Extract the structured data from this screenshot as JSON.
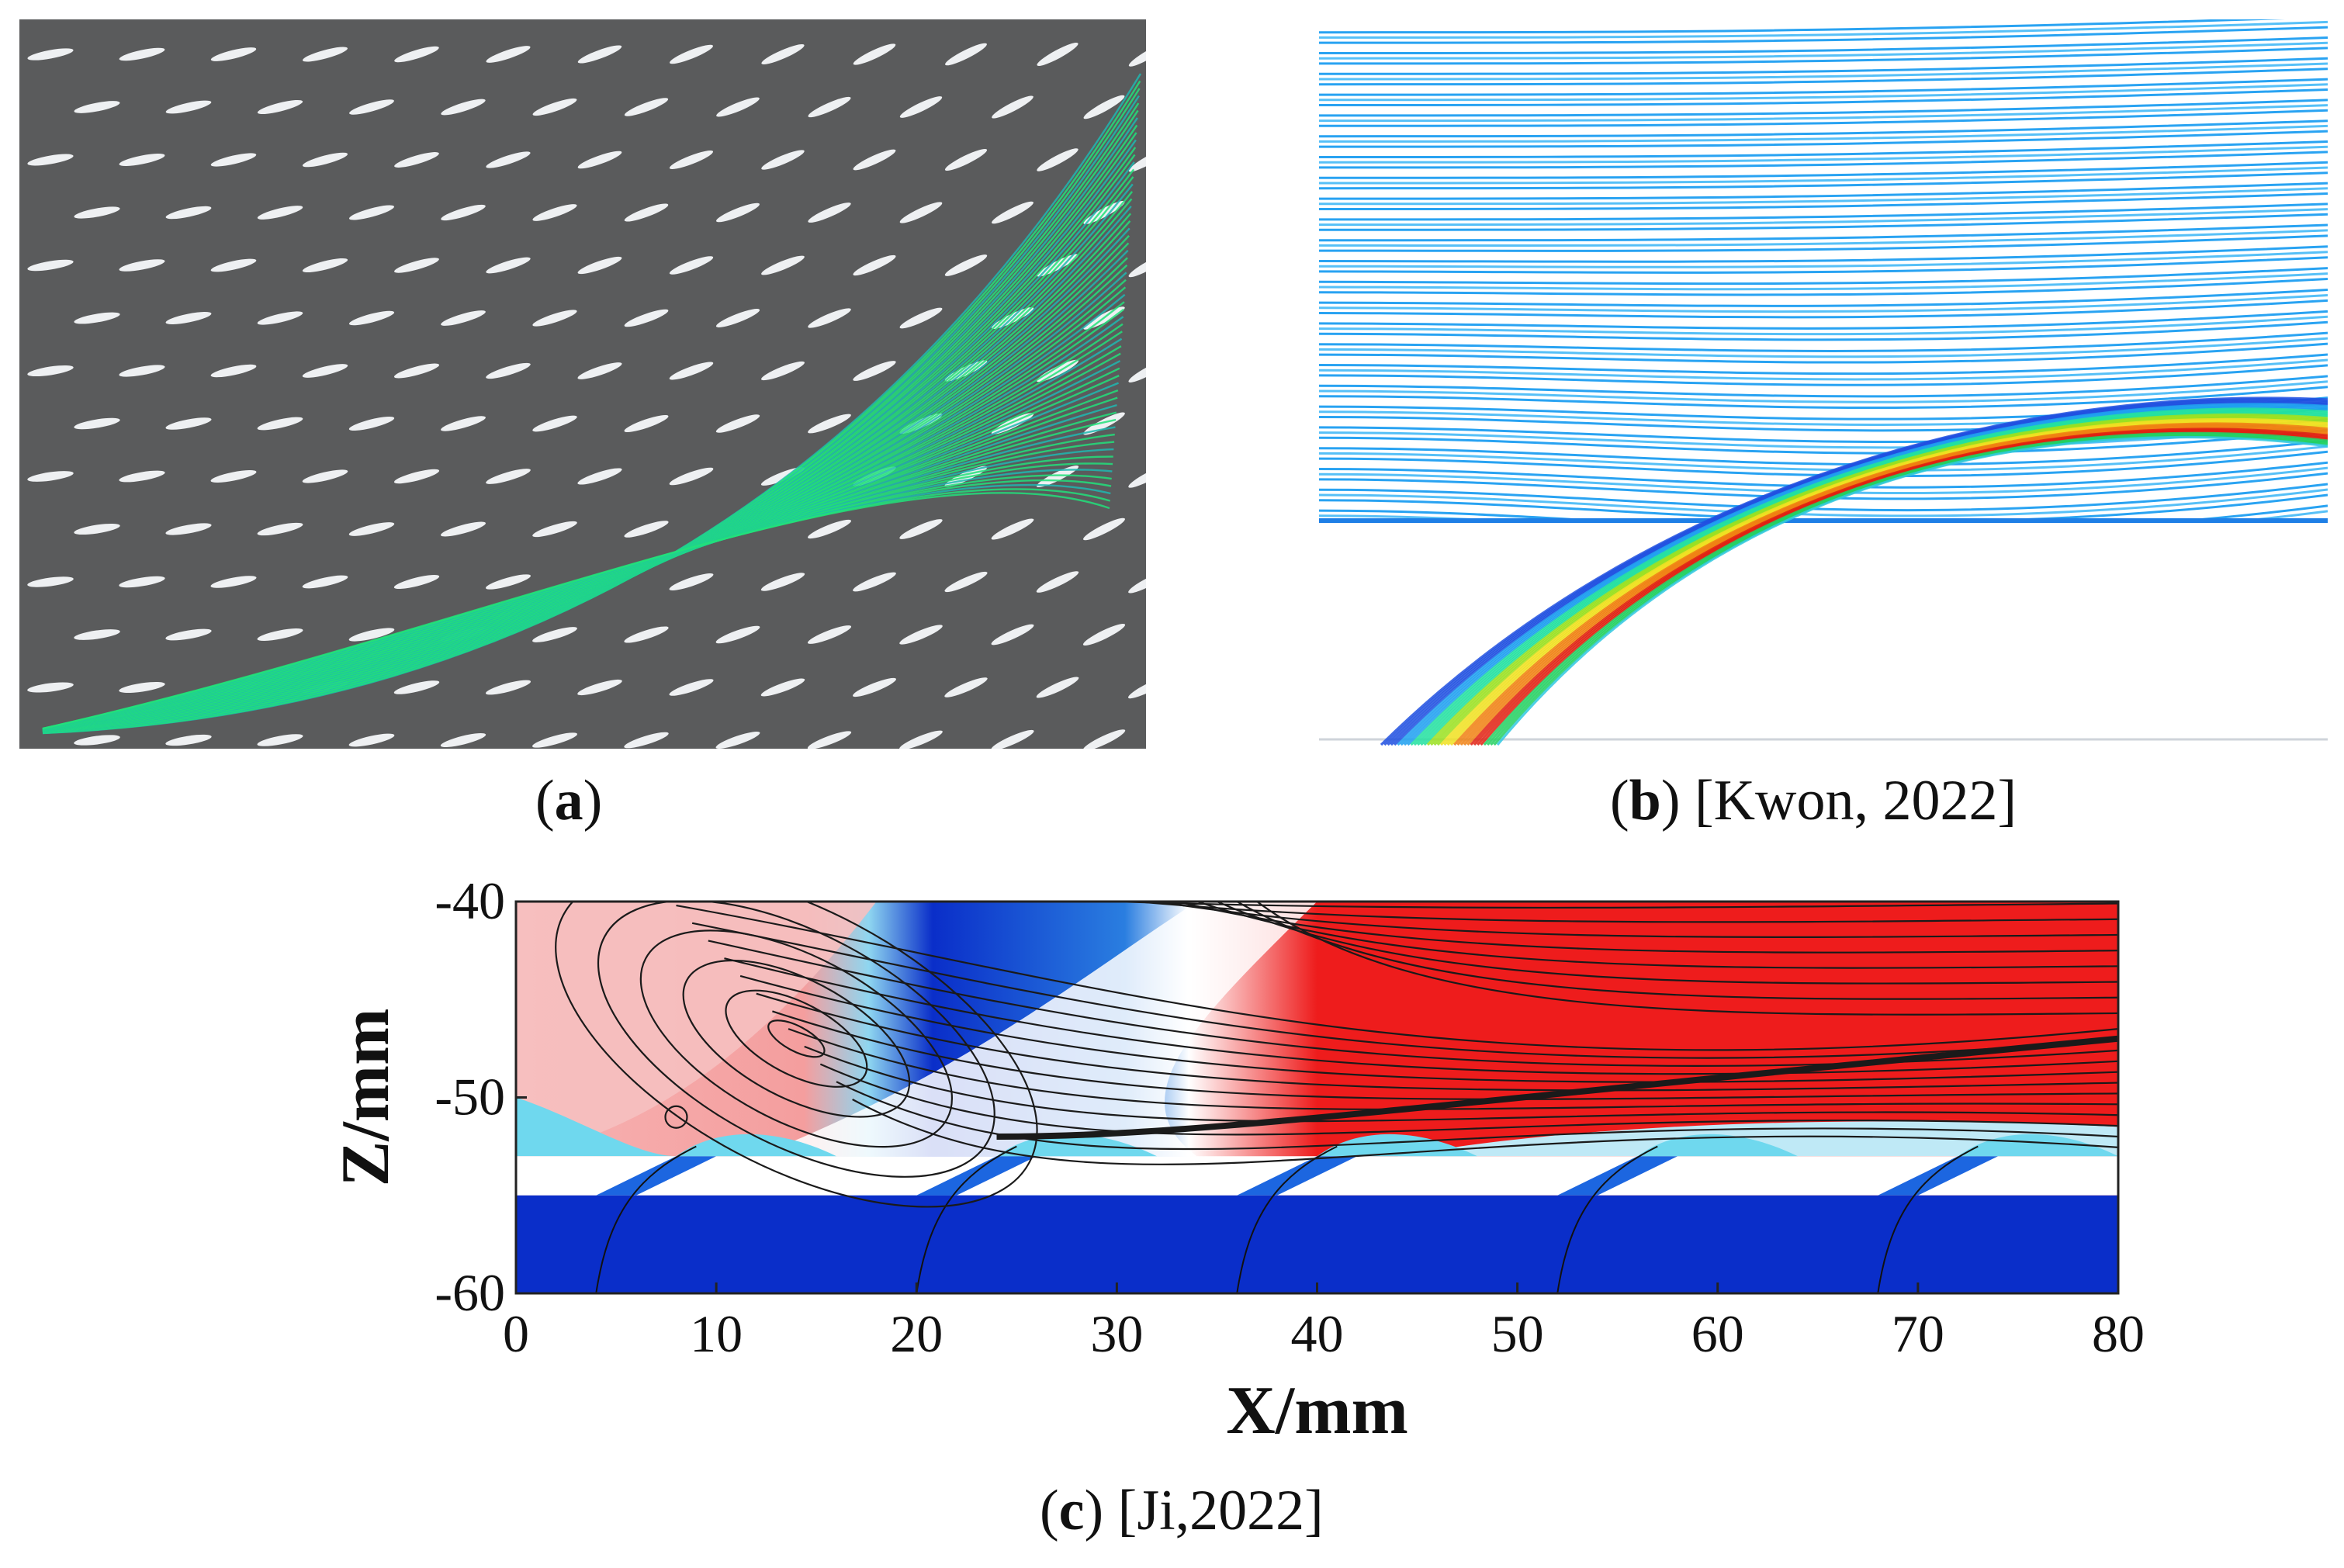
{
  "panels": {
    "a": {
      "caption_label": "a"
    },
    "b": {
      "caption_label": "b",
      "caption_ref": " [Kwon, 2022]"
    },
    "c": {
      "caption_label": "c",
      "caption_ref": " [Ji,2022]"
    }
  },
  "chart_data": {
    "type": "contour",
    "title": "",
    "xlabel": "X/mm",
    "ylabel": "Z/mm",
    "xlim": [
      0,
      80
    ],
    "ylim": [
      -60,
      -40
    ],
    "x_ticks": [
      0,
      10,
      20,
      30,
      40,
      50,
      60,
      70,
      80
    ],
    "y_ticks": [
      -60,
      -50,
      -40
    ],
    "x_tick_labels": [
      "0",
      "10",
      "20",
      "30",
      "40",
      "50",
      "60",
      "70",
      "80"
    ],
    "y_tick_labels": [
      "-60",
      "-50",
      "-40"
    ],
    "film_holes_x": [
      4,
      20,
      36,
      52,
      68
    ],
    "plate_surface_z": [
      -53,
      -55
    ]
  },
  "colors": {
    "panel_a_bg": "#5a5b5c",
    "streamline_green": "#22e07a",
    "streamline_teal": "#1fb8b0",
    "contour_red": "#ee1c1c",
    "contour_blue": "#0a2ec9",
    "contour_cyan": "#6fd8ee"
  }
}
